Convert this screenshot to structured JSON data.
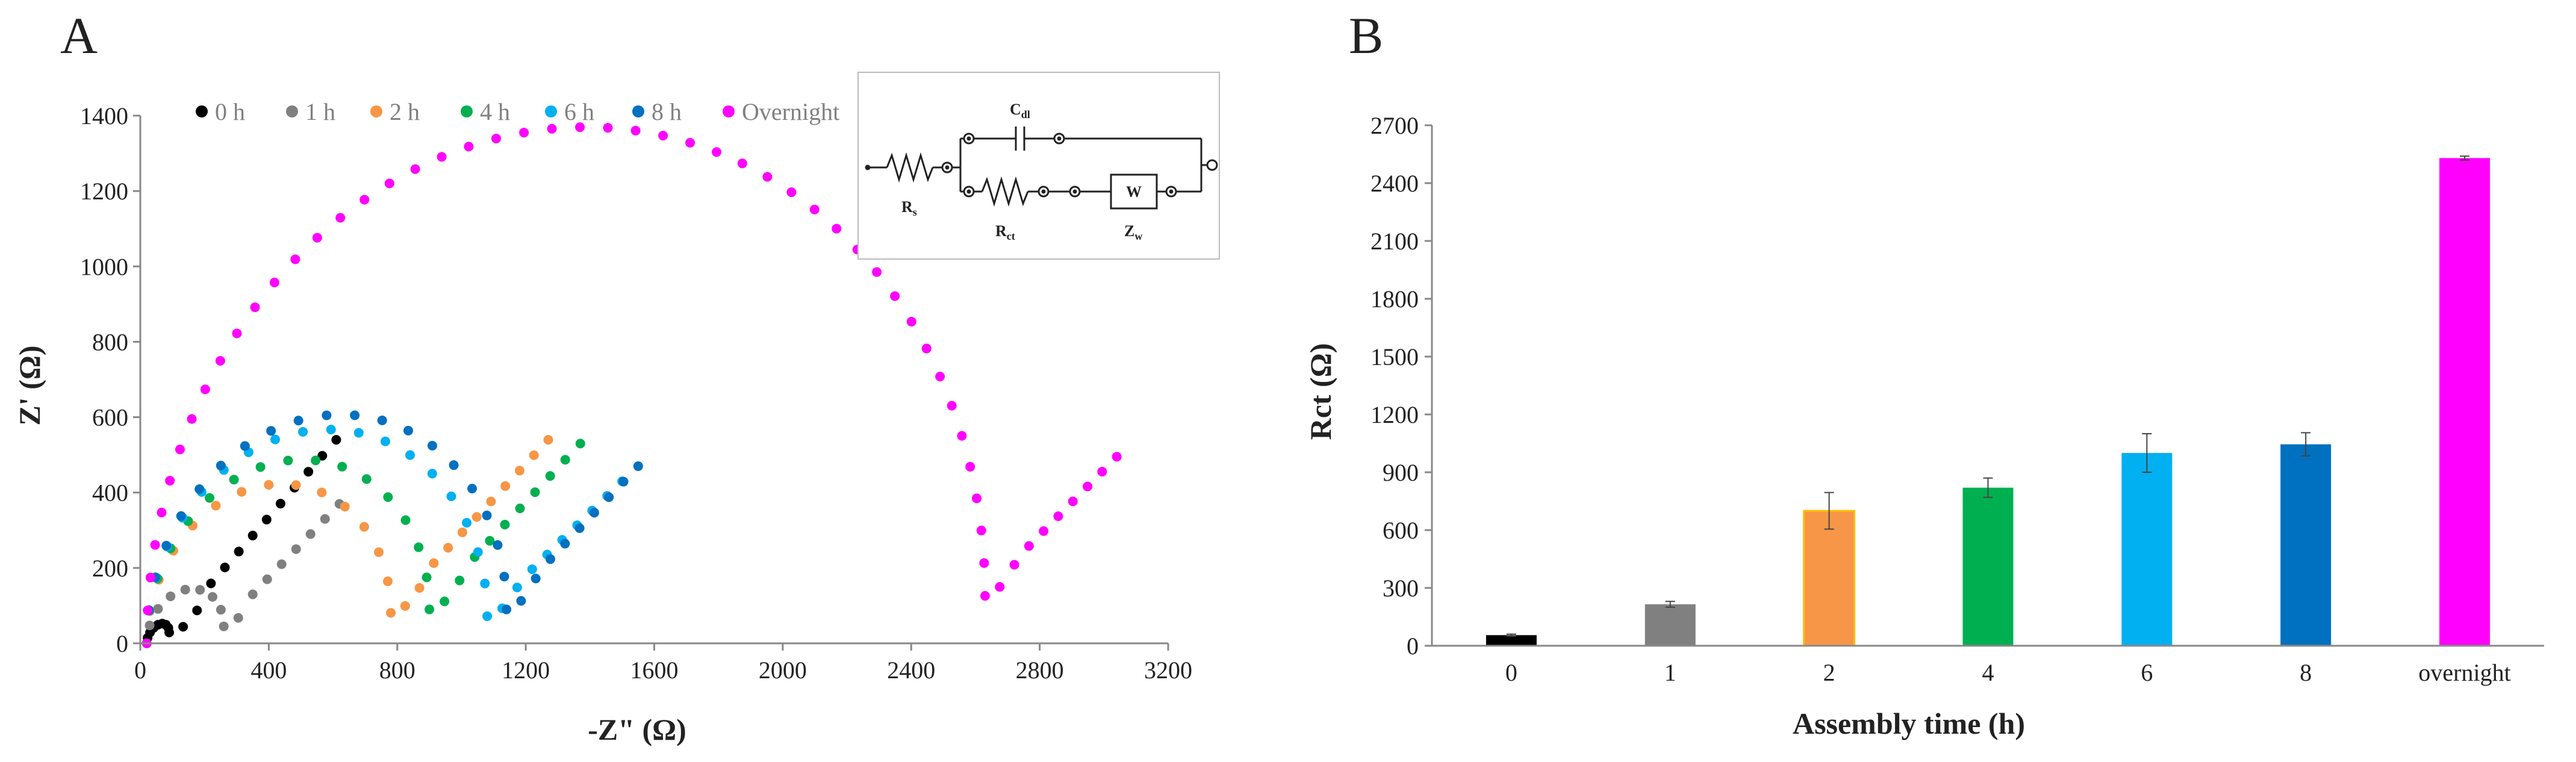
{
  "panel_labels": {
    "a": "A",
    "b": "B"
  },
  "chart_data": [
    {
      "type": "scatter",
      "panel": "A",
      "title": "",
      "xlabel": "-Z\" (Ω)",
      "ylabel": "Z' (Ω)",
      "xlim": [
        0,
        3200
      ],
      "ylim": [
        0,
        1400
      ],
      "xticks": [
        "0",
        "400",
        "800",
        "1200",
        "1600",
        "2000",
        "2400",
        "2800",
        "3200"
      ],
      "yticks": [
        "0",
        "200",
        "400",
        "600",
        "800",
        "1000",
        "1200",
        "1400"
      ],
      "legend_position": "top",
      "series": [
        {
          "name": "0 h",
          "color": "#000000",
          "rs": 20,
          "rct": 70,
          "zmin": 32,
          "wx": 610,
          "wy": 540
        },
        {
          "name": "1 h",
          "color": "#808080",
          "rs": 20,
          "rct": 240,
          "zmin": 50,
          "wx": 620,
          "wy": 370
        },
        {
          "name": "2 h",
          "color": "#F79646",
          "rs": 20,
          "rct": 760,
          "zmin": 90,
          "wx": 1270,
          "wy": 540
        },
        {
          "name": "4 h",
          "color": "#00B050",
          "rs": 20,
          "rct": 880,
          "zmin": 100,
          "wx": 1370,
          "wy": 530
        },
        {
          "name": "6 h",
          "color": "#00B0F0",
          "rs": 20,
          "rct": 1060,
          "zmin": 80,
          "wx": 1500,
          "wy": 430
        },
        {
          "name": "8 h",
          "color": "#0070C0",
          "rs": 20,
          "rct": 1120,
          "zmin": 100,
          "wx": 1550,
          "wy": 470
        },
        {
          "name": "Overnight",
          "color": "#FF00FF",
          "rs": 20,
          "rct": 2610,
          "zmin": 140,
          "wx": 3040,
          "wy": 495
        }
      ],
      "inset_circuit": {
        "labels": {
          "rs": "R",
          "rs_sub": "s",
          "cdl": "C",
          "cdl_sub": "dl",
          "rct": "R",
          "rct_sub": "ct",
          "w": "W",
          "zw": "Z",
          "zw_sub": "w"
        }
      }
    },
    {
      "type": "bar",
      "panel": "B",
      "title": "",
      "xlabel": "Assembly time (h)",
      "ylabel": "Rct (Ω)",
      "ylim": [
        0,
        2700
      ],
      "yticks": [
        "0",
        "300",
        "600",
        "900",
        "1200",
        "1500",
        "1800",
        "2100",
        "2400",
        "2700"
      ],
      "categories": [
        "0",
        "1",
        "2",
        "4",
        "6",
        "8",
        "overnight"
      ],
      "values": [
        55,
        215,
        700,
        820,
        1000,
        1045,
        2530
      ],
      "errors": [
        5,
        15,
        95,
        50,
        100,
        60,
        10
      ],
      "colors": [
        "#000000",
        "#808080",
        "#F79646",
        "#00B050",
        "#00B0F0",
        "#0070C0",
        "#FF00FF"
      ]
    }
  ]
}
